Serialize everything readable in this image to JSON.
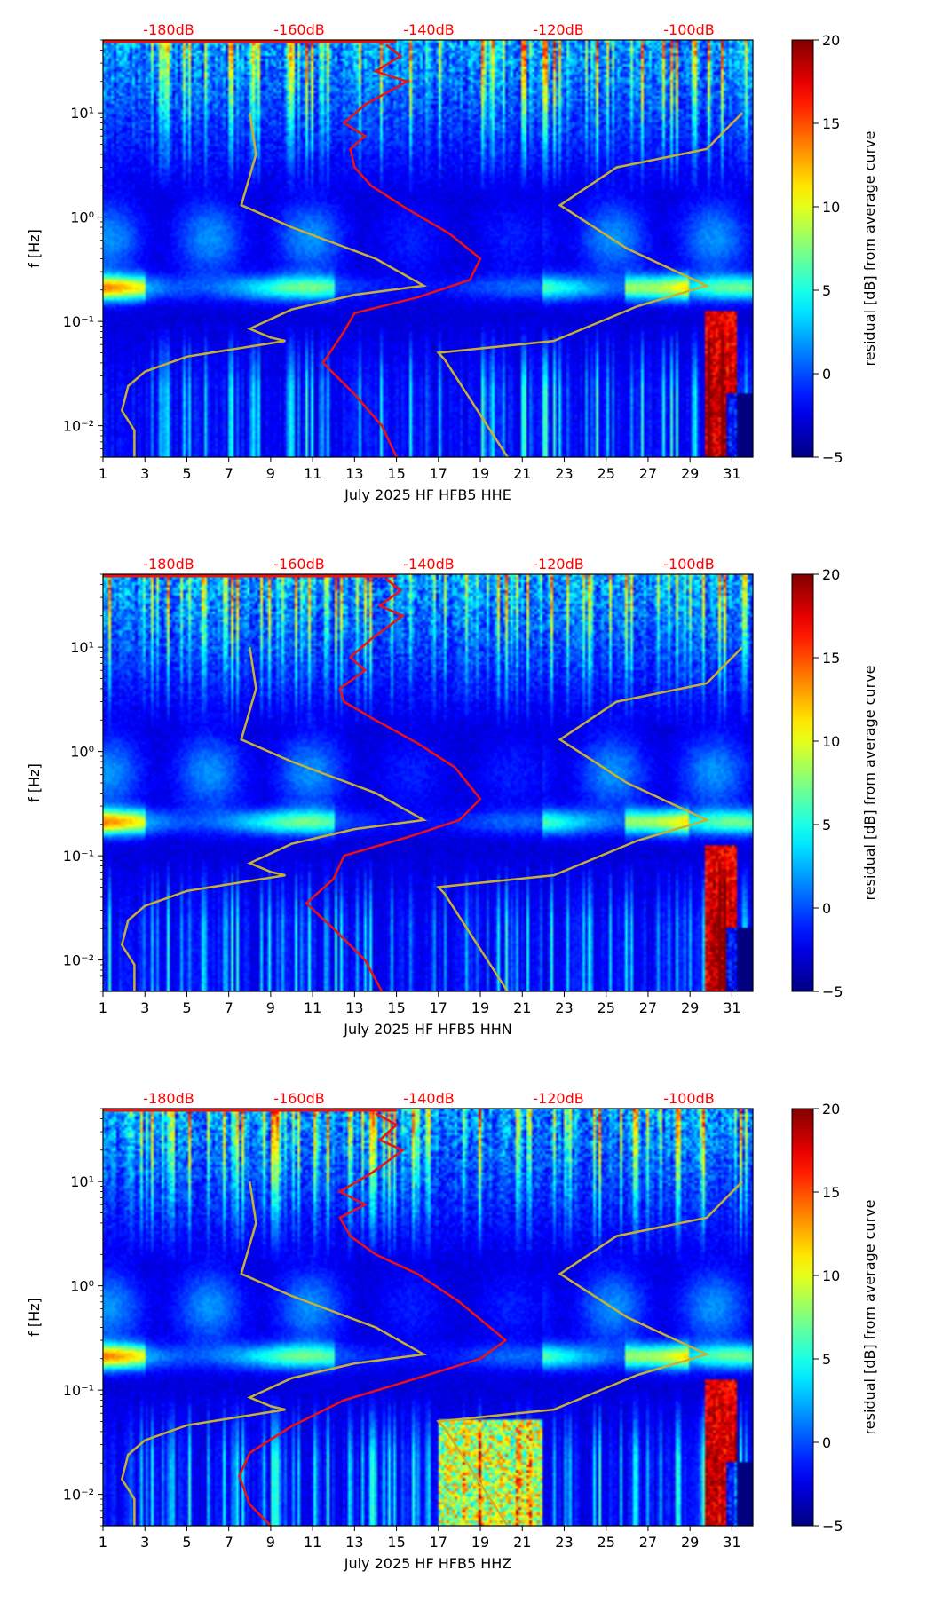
{
  "chart_data": [
    {
      "type": "heatmap",
      "component": "HHE",
      "xlabel": "July 2025 HF HFB5  HHE",
      "ylabel": "f [Hz]",
      "colorbar_label": "residual [dB] from average curve",
      "x_ticks": [
        "1",
        "3",
        "5",
        "7",
        "9",
        "11",
        "13",
        "15",
        "17",
        "19",
        "21",
        "23",
        "25",
        "27",
        "29",
        "31"
      ],
      "y_ticks": [
        "10⁻²",
        "10⁻¹",
        "10⁰",
        "10¹"
      ],
      "y_tick_values": [
        0.01,
        0.1,
        1,
        10
      ],
      "ylim": [
        0.005,
        50
      ],
      "xlim": [
        1,
        32
      ],
      "db_scale_labels": [
        "-180dB",
        "-160dB",
        "-140dB",
        "-120dB",
        "-100dB"
      ],
      "colorbar_ticks": [
        "−5",
        "0",
        "5",
        "10",
        "15",
        "20"
      ],
      "colorbar_range": [
        -5,
        20
      ],
      "colormap": "jet"
    },
    {
      "type": "heatmap",
      "component": "HHN",
      "xlabel": "July 2025 HF HFB5  HHN",
      "ylabel": "f [Hz]",
      "colorbar_label": "residual [dB] from average curve",
      "x_ticks": [
        "1",
        "3",
        "5",
        "7",
        "9",
        "11",
        "13",
        "15",
        "17",
        "19",
        "21",
        "23",
        "25",
        "27",
        "29",
        "31"
      ],
      "y_ticks": [
        "10⁻²",
        "10⁻¹",
        "10⁰",
        "10¹"
      ],
      "y_tick_values": [
        0.01,
        0.1,
        1,
        10
      ],
      "ylim": [
        0.005,
        50
      ],
      "xlim": [
        1,
        32
      ],
      "db_scale_labels": [
        "-180dB",
        "-160dB",
        "-140dB",
        "-120dB",
        "-100dB"
      ],
      "colorbar_ticks": [
        "−5",
        "0",
        "5",
        "10",
        "15",
        "20"
      ],
      "colorbar_range": [
        -5,
        20
      ],
      "colormap": "jet"
    },
    {
      "type": "heatmap",
      "component": "HHZ",
      "xlabel": "July 2025 HF HFB5  HHZ",
      "ylabel": "f [Hz]",
      "colorbar_label": "residual [dB] from average curve",
      "x_ticks": [
        "1",
        "3",
        "5",
        "7",
        "9",
        "11",
        "13",
        "15",
        "17",
        "19",
        "21",
        "23",
        "25",
        "27",
        "29",
        "31"
      ],
      "y_ticks": [
        "10⁻²",
        "10⁻¹",
        "10⁰",
        "10¹"
      ],
      "y_tick_values": [
        0.01,
        0.1,
        1,
        10
      ],
      "ylim": [
        0.005,
        50
      ],
      "xlim": [
        1,
        32
      ],
      "db_scale_labels": [
        "-180dB",
        "-160dB",
        "-140dB",
        "-120dB",
        "-100dB"
      ],
      "colorbar_ticks": [
        "−5",
        "0",
        "5",
        "10",
        "15",
        "20"
      ],
      "colorbar_range": [
        -5,
        20
      ],
      "colormap": "jet"
    }
  ],
  "colors": {
    "average_curve": "#ee1111",
    "model_curves": "#c8b030",
    "db_label": "#ff0000"
  }
}
